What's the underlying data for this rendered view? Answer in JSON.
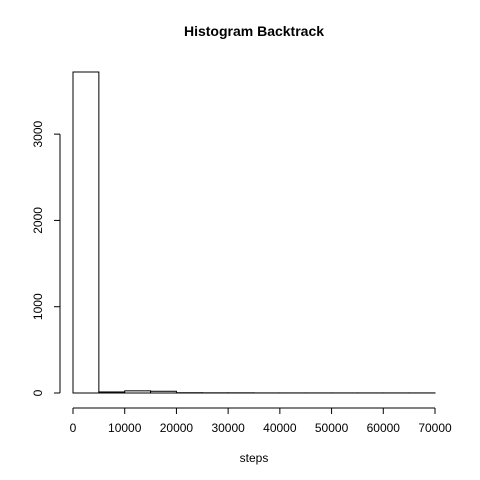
{
  "chart_data": {
    "type": "bar",
    "title": "Histogram Backtrack",
    "xlabel": "steps",
    "ylabel": "",
    "bin_edges": [
      0,
      5000,
      10000,
      15000,
      20000,
      25000,
      30000,
      35000,
      40000,
      45000,
      50000,
      55000,
      60000,
      65000,
      70000
    ],
    "values": [
      3720,
      12,
      25,
      20,
      3,
      2,
      2,
      1,
      1,
      1,
      1,
      1,
      1,
      1
    ],
    "xlim": [
      0,
      70000
    ],
    "ylim": [
      0,
      3720
    ],
    "xticks": [
      0,
      10000,
      20000,
      30000,
      40000,
      50000,
      60000,
      70000
    ],
    "xtick_labels": [
      "0",
      "10000",
      "20000",
      "30000",
      "40000",
      "50000",
      "60000",
      "70000"
    ],
    "yticks": [
      0,
      1000,
      2000,
      3000
    ],
    "ytick_labels": [
      "0",
      "1000",
      "2000",
      "3000"
    ],
    "grid": false,
    "legend": ""
  }
}
